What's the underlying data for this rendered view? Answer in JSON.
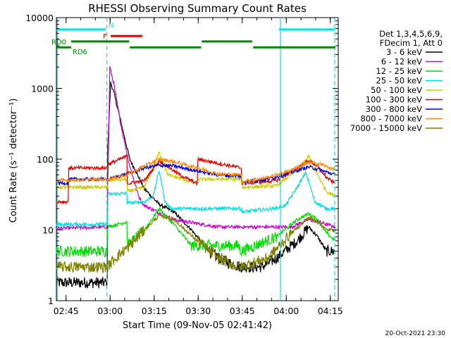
{
  "chart_data": {
    "type": "line",
    "title": "RHESSI Observing Summary Count Rates",
    "xlabel": "Start Time (09-Nov-05 02:41:42)",
    "ylabel": "Count Rate (s⁻¹ detector⁻¹)",
    "y_scale": "log",
    "ylim": [
      1,
      10000
    ],
    "x_range_minutes": [
      0,
      96
    ],
    "x_ticks": [
      {
        "min": 3.3,
        "label": "02:45"
      },
      {
        "min": 18.3,
        "label": "03:00"
      },
      {
        "min": 33.3,
        "label": "03:15"
      },
      {
        "min": 48.3,
        "label": "03:30"
      },
      {
        "min": 63.3,
        "label": "03:45"
      },
      {
        "min": 78.3,
        "label": "04:00"
      },
      {
        "min": 93.3,
        "label": "04:15"
      }
    ],
    "y_ticks": [
      {
        "v": 1,
        "label": "1"
      },
      {
        "v": 10,
        "label": "10"
      },
      {
        "v": 100,
        "label": "100"
      },
      {
        "v": 1000,
        "label": "1000"
      },
      {
        "v": 10000,
        "label": "10000"
      }
    ],
    "legend_header": [
      "Det 1,3,4,5,6,9,",
      "FDecim 1, Att 0"
    ],
    "series": [
      {
        "name": "3 - 6 keV",
        "color": "#000000",
        "points": [
          [
            0,
            1.8
          ],
          [
            17.3,
            1.8
          ],
          [
            17.5,
            150
          ],
          [
            18.5,
            1200
          ],
          [
            19.5,
            900
          ],
          [
            25,
            100
          ],
          [
            30,
            38
          ],
          [
            35,
            23
          ],
          [
            40,
            18
          ],
          [
            46,
            10
          ],
          [
            52,
            5
          ],
          [
            58,
            3.5
          ],
          [
            63,
            3
          ],
          [
            70,
            3
          ],
          [
            75,
            4
          ],
          [
            82,
            7
          ],
          [
            86,
            11
          ],
          [
            89,
            8
          ],
          [
            92,
            5
          ],
          [
            95,
            5
          ]
        ]
      },
      {
        "name": "6 - 12 keV",
        "color": "#cc00cc",
        "points": [
          [
            0,
            10.5
          ],
          [
            17.3,
            11
          ],
          [
            18.2,
            2000
          ],
          [
            19.5,
            1200
          ],
          [
            22,
            300
          ],
          [
            25,
            80
          ],
          [
            28,
            30
          ],
          [
            30,
            22
          ],
          [
            40,
            14
          ],
          [
            55,
            11
          ],
          [
            70,
            11
          ],
          [
            80,
            11
          ],
          [
            86,
            14
          ],
          [
            89,
            13
          ],
          [
            92,
            12
          ],
          [
            95,
            11
          ]
        ]
      },
      {
        "name": "12 - 25 keV",
        "color": "#00dd00",
        "points": [
          [
            0,
            5
          ],
          [
            17.2,
            5
          ],
          [
            17.4,
            11
          ],
          [
            24,
            13
          ],
          [
            24.2,
            6
          ],
          [
            30,
            10
          ],
          [
            35,
            20
          ],
          [
            40,
            12
          ],
          [
            46,
            6
          ],
          [
            54,
            6
          ],
          [
            62,
            6
          ],
          [
            63,
            5
          ],
          [
            75,
            8
          ],
          [
            82,
            14
          ],
          [
            86,
            17
          ],
          [
            89,
            14
          ],
          [
            92,
            9
          ],
          [
            95,
            7
          ]
        ]
      },
      {
        "name": "25 - 50 keV",
        "color": "#00dddd",
        "points": [
          [
            0,
            12
          ],
          [
            17.4,
            12
          ],
          [
            17.6,
            32
          ],
          [
            24,
            33
          ],
          [
            24.2,
            24
          ],
          [
            30,
            25
          ],
          [
            33,
            30
          ],
          [
            35,
            70
          ],
          [
            37,
            25
          ],
          [
            39,
            20
          ],
          [
            48,
            20
          ],
          [
            63,
            20
          ],
          [
            63.2,
            18
          ],
          [
            74,
            20
          ],
          [
            78,
            22
          ],
          [
            82,
            40
          ],
          [
            85,
            65
          ],
          [
            88,
            25
          ],
          [
            92,
            20
          ],
          [
            95,
            20
          ]
        ]
      },
      {
        "name": "50 - 100 keV",
        "color": "#cccc00",
        "points": [
          [
            0,
            40
          ],
          [
            17.5,
            40
          ],
          [
            17.7,
            50
          ],
          [
            24,
            52
          ],
          [
            24.2,
            35
          ],
          [
            30,
            40
          ],
          [
            35,
            125
          ],
          [
            38,
            60
          ],
          [
            48,
            45
          ],
          [
            48.2,
            52
          ],
          [
            63,
            52
          ],
          [
            63.2,
            40
          ],
          [
            75,
            42
          ],
          [
            82,
            70
          ],
          [
            86,
            110
          ],
          [
            89,
            60
          ],
          [
            92,
            35
          ],
          [
            95,
            30
          ]
        ]
      },
      {
        "name": "100 - 300 keV",
        "color": "#dd0000",
        "points": [
          [
            0,
            25
          ],
          [
            4,
            25
          ],
          [
            4.2,
            75
          ],
          [
            17.5,
            75
          ],
          [
            17.7,
            85
          ],
          [
            24,
            110
          ],
          [
            24.2,
            45
          ],
          [
            30,
            50
          ],
          [
            35,
            95
          ],
          [
            42,
            60
          ],
          [
            48,
            45
          ],
          [
            48.2,
            100
          ],
          [
            63,
            75
          ],
          [
            63.2,
            45
          ],
          [
            75,
            50
          ],
          [
            82,
            75
          ],
          [
            86,
            95
          ],
          [
            89,
            80
          ],
          [
            92,
            55
          ],
          [
            95,
            45
          ]
        ]
      },
      {
        "name": "300 - 800 keV",
        "color": "#0000dd",
        "points": [
          [
            0,
            46
          ],
          [
            4,
            46
          ],
          [
            4.2,
            52
          ],
          [
            17.5,
            52
          ],
          [
            24,
            62
          ],
          [
            30,
            75
          ],
          [
            35,
            82
          ],
          [
            40,
            80
          ],
          [
            48,
            68
          ],
          [
            55,
            60
          ],
          [
            63,
            57
          ],
          [
            63.2,
            48
          ],
          [
            72,
            52
          ],
          [
            80,
            65
          ],
          [
            86,
            78
          ],
          [
            90,
            70
          ],
          [
            95,
            60
          ]
        ]
      },
      {
        "name": "800 - 7000 keV",
        "color": "#ff8800",
        "points": [
          [
            0,
            50
          ],
          [
            17.5,
            52
          ],
          [
            24,
            60
          ],
          [
            30,
            80
          ],
          [
            35,
            100
          ],
          [
            40,
            92
          ],
          [
            48,
            75
          ],
          [
            55,
            62
          ],
          [
            63,
            60
          ],
          [
            63.2,
            48
          ],
          [
            72,
            55
          ],
          [
            80,
            70
          ],
          [
            86,
            90
          ],
          [
            90,
            85
          ],
          [
            95,
            70
          ]
        ]
      },
      {
        "name": "7000 - 15000 keV",
        "color": "#808000",
        "points": [
          [
            0,
            3
          ],
          [
            17.5,
            3
          ],
          [
            20,
            4
          ],
          [
            25,
            6
          ],
          [
            30,
            10
          ],
          [
            35,
            16
          ],
          [
            40,
            14
          ],
          [
            48,
            7
          ],
          [
            55,
            4
          ],
          [
            62,
            3
          ],
          [
            63,
            3
          ],
          [
            72,
            4
          ],
          [
            80,
            9
          ],
          [
            86,
            15
          ],
          [
            89,
            13
          ],
          [
            92,
            10
          ],
          [
            95,
            10
          ]
        ]
      }
    ],
    "flag_bars": [
      {
        "name": "N",
        "color": "#00e5e5",
        "segments": [
          [
            0,
            16.8
          ],
          [
            75.8,
            94.8
          ]
        ],
        "value": 6800
      },
      {
        "name": "F",
        "color": "#dd0000",
        "segments": [
          [
            18.5,
            29.3
          ]
        ],
        "value": 5500
      },
      {
        "name": "RD0",
        "color": "#008800",
        "segments": [
          [
            5,
            24.8
          ],
          [
            49.5,
            66.7
          ]
        ],
        "value": 4600
      },
      {
        "name": "RD6",
        "color": "#008800",
        "segments": [
          [
            0,
            5
          ],
          [
            25,
            49.3
          ],
          [
            67,
            95
          ]
        ],
        "value": 3800
      }
    ],
    "vlines": [
      {
        "min": 0.3,
        "color": "#00e5e5",
        "dashed": false
      },
      {
        "min": 17.2,
        "color": "#00e5e5",
        "dashed": true
      },
      {
        "min": 76.3,
        "color": "#00e5e5",
        "dashed": false
      },
      {
        "min": 94.8,
        "color": "#00e5e5",
        "dashed": true
      }
    ]
  },
  "timestamp": "20-Oct-2021 23:30"
}
